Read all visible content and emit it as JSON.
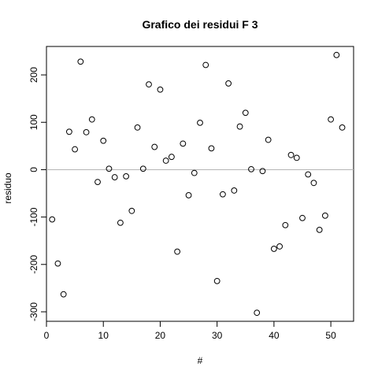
{
  "chart_data": {
    "type": "scatter",
    "title": "Grafico dei residui F 3",
    "xlabel": "#",
    "ylabel": "residuo",
    "xlim": [
      0,
      54
    ],
    "ylim": [
      -320,
      260
    ],
    "xticks": [
      0,
      10,
      20,
      30,
      40,
      50
    ],
    "yticks": [
      -300,
      -200,
      -100,
      0,
      100,
      200
    ],
    "hline": 0,
    "hline_color": "#b5b5b5",
    "grid": false,
    "points": [
      {
        "x": 1,
        "y": -105
      },
      {
        "x": 2,
        "y": -198
      },
      {
        "x": 3,
        "y": -263
      },
      {
        "x": 4,
        "y": 80
      },
      {
        "x": 5,
        "y": 43
      },
      {
        "x": 6,
        "y": 228
      },
      {
        "x": 7,
        "y": 79
      },
      {
        "x": 8,
        "y": 106
      },
      {
        "x": 9,
        "y": -26
      },
      {
        "x": 10,
        "y": 61
      },
      {
        "x": 11,
        "y": 2
      },
      {
        "x": 12,
        "y": -16
      },
      {
        "x": 13,
        "y": -112
      },
      {
        "x": 14,
        "y": -14
      },
      {
        "x": 15,
        "y": -87
      },
      {
        "x": 16,
        "y": 89
      },
      {
        "x": 17,
        "y": 2
      },
      {
        "x": 18,
        "y": 180
      },
      {
        "x": 19,
        "y": 48
      },
      {
        "x": 20,
        "y": 169
      },
      {
        "x": 21,
        "y": 19
      },
      {
        "x": 22,
        "y": 27
      },
      {
        "x": 23,
        "y": -173
      },
      {
        "x": 24,
        "y": 55
      },
      {
        "x": 25,
        "y": -54
      },
      {
        "x": 26,
        "y": -7
      },
      {
        "x": 27,
        "y": 99
      },
      {
        "x": 28,
        "y": 221
      },
      {
        "x": 29,
        "y": 45
      },
      {
        "x": 30,
        "y": -235
      },
      {
        "x": 31,
        "y": -52
      },
      {
        "x": 32,
        "y": 182
      },
      {
        "x": 33,
        "y": -44
      },
      {
        "x": 34,
        "y": 91
      },
      {
        "x": 35,
        "y": 120
      },
      {
        "x": 36,
        "y": 1
      },
      {
        "x": 37,
        "y": -302
      },
      {
        "x": 38,
        "y": -3
      },
      {
        "x": 39,
        "y": 63
      },
      {
        "x": 40,
        "y": -167
      },
      {
        "x": 41,
        "y": -162
      },
      {
        "x": 42,
        "y": -117
      },
      {
        "x": 43,
        "y": 31
      },
      {
        "x": 44,
        "y": 25
      },
      {
        "x": 45,
        "y": -102
      },
      {
        "x": 46,
        "y": -10
      },
      {
        "x": 47,
        "y": -28
      },
      {
        "x": 48,
        "y": -127
      },
      {
        "x": 49,
        "y": -97
      },
      {
        "x": 50,
        "y": 106
      },
      {
        "x": 51,
        "y": 242
      },
      {
        "x": 52,
        "y": 89
      }
    ]
  }
}
